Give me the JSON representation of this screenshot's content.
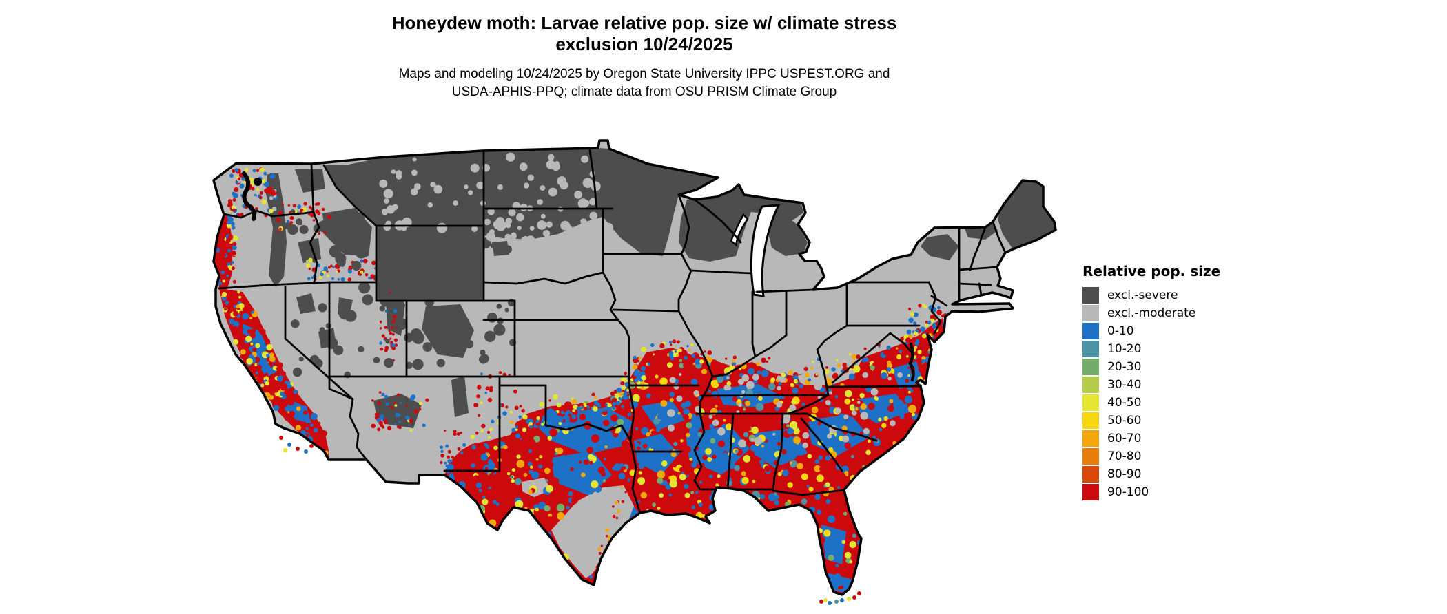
{
  "title": {
    "line1": "Honeydew moth: Larvae relative pop. size w/ climate stress",
    "line2": "exclusion 10/24/2025"
  },
  "subtitle": {
    "line1": "Maps and modeling 10/24/2025 by Oregon State University IPPC USPEST.ORG and",
    "line2": "USDA-APHIS-PPQ; climate data from OSU PRISM Climate Group"
  },
  "legend": {
    "title": "Relative pop. size",
    "entries": [
      {
        "label": "excl.-severe",
        "color": "#4d4d4d"
      },
      {
        "label": "excl.-moderate",
        "color": "#b8b8b8"
      },
      {
        "label": "0-10",
        "color": "#1d72c8"
      },
      {
        "label": "10-20",
        "color": "#4d93a6"
      },
      {
        "label": "20-30",
        "color": "#74ad69"
      },
      {
        "label": "30-40",
        "color": "#b6cd4a"
      },
      {
        "label": "40-50",
        "color": "#e4e532"
      },
      {
        "label": "50-60",
        "color": "#f7d70e"
      },
      {
        "label": "60-70",
        "color": "#f3a70b"
      },
      {
        "label": "70-80",
        "color": "#e87d0c"
      },
      {
        "label": "80-90",
        "color": "#d94808"
      },
      {
        "label": "90-100",
        "color": "#cc0a0e"
      }
    ]
  },
  "map": {
    "name": "Contiguous US raster map of honeydew moth larvae relative population size with climate stress exclusion",
    "water_color": "#ffffff",
    "border_color": "#000000",
    "regions_summary": [
      "Northern tier (Cascades, northern Rockies, Montana, North Dakota, northern Minnesota, Wisconsin, upper Michigan, northern New England, Adirondacks): excl.-severe (dark gray)",
      "Interior West basins, central plains and mid-Midwest: excl.-moderate (light gray) with dark mountain patches",
      "Southern US from central Texas/Oklahoma east through the Gulf states, Tennessee valley, Southeast, Florida and the Atlantic coastal plain up to New Jersey: mottled 90-100 (red) and 0-10 (blue) with 40-80 (yellow/orange) fringes",
      "Pacific coast: Puget lowlands and Oregon coast red/blue fringe; California coast, Central Valley and Sierra foothills mottled red/blue",
      "South Texas and Texas hill-country pockets: excl.-moderate (light gray) with red coastal fringe"
    ]
  }
}
